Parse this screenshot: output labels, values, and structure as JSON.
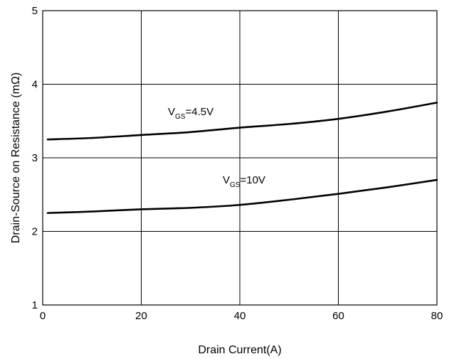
{
  "chart_data": {
    "type": "line",
    "xlabel": "Drain Current(A)",
    "ylabel": "Drain-Source on Resistance (mΩ)",
    "xlim": [
      0,
      80
    ],
    "ylim": [
      1,
      5
    ],
    "xticks": [
      "0",
      "20",
      "40",
      "60",
      "80"
    ],
    "yticks": [
      "1",
      "2",
      "3",
      "4",
      "5"
    ],
    "grid": true,
    "series": [
      {
        "name": "VGS=4.5V",
        "label_main": "V",
        "label_sub": "GS",
        "label_rest": "=4.5V",
        "x": [
          1,
          10,
          20,
          30,
          40,
          50,
          60,
          70,
          80
        ],
        "y": [
          3.25,
          3.27,
          3.31,
          3.35,
          3.41,
          3.46,
          3.53,
          3.63,
          3.75
        ]
      },
      {
        "name": "VGS=10V",
        "label_main": "V",
        "label_sub": "GS",
        "label_rest": "=10V",
        "x": [
          1,
          10,
          20,
          30,
          40,
          50,
          60,
          70,
          80
        ],
        "y": [
          2.25,
          2.27,
          2.3,
          2.32,
          2.36,
          2.43,
          2.51,
          2.6,
          2.7
        ]
      }
    ]
  }
}
